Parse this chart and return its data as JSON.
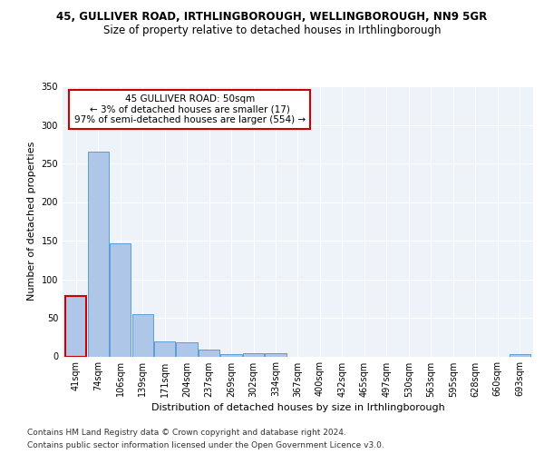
{
  "title_line1": "45, GULLIVER ROAD, IRTHLINGBOROUGH, WELLINGBOROUGH, NN9 5GR",
  "title_line2": "Size of property relative to detached houses in Irthlingborough",
  "xlabel": "Distribution of detached houses by size in Irthlingborough",
  "ylabel": "Number of detached properties",
  "categories": [
    "41sqm",
    "74sqm",
    "106sqm",
    "139sqm",
    "171sqm",
    "204sqm",
    "237sqm",
    "269sqm",
    "302sqm",
    "334sqm",
    "367sqm",
    "400sqm",
    "432sqm",
    "465sqm",
    "497sqm",
    "530sqm",
    "563sqm",
    "595sqm",
    "628sqm",
    "660sqm",
    "693sqm"
  ],
  "values": [
    78,
    265,
    146,
    55,
    19,
    18,
    9,
    3,
    4,
    4,
    0,
    0,
    0,
    0,
    0,
    0,
    0,
    0,
    0,
    0,
    3
  ],
  "bar_color": "#aec6e8",
  "bar_edge_color": "#5b9bd5",
  "highlight_bar_index": 0,
  "highlight_edge_color": "#cc0000",
  "annotation_text": "45 GULLIVER ROAD: 50sqm\n← 3% of detached houses are smaller (17)\n97% of semi-detached houses are larger (554) →",
  "annotation_box_color": "#ffffff",
  "annotation_box_edge_color": "#cc0000",
  "ylim": [
    0,
    350
  ],
  "yticks": [
    0,
    50,
    100,
    150,
    200,
    250,
    300,
    350
  ],
  "footer_line1": "Contains HM Land Registry data © Crown copyright and database right 2024.",
  "footer_line2": "Contains public sector information licensed under the Open Government Licence v3.0.",
  "bg_color": "#eef3fa",
  "fig_bg_color": "#ffffff",
  "grid_color": "#ffffff",
  "title_fontsize": 8.5,
  "subtitle_fontsize": 8.5,
  "axis_label_fontsize": 8,
  "tick_fontsize": 7,
  "footer_fontsize": 6.5
}
